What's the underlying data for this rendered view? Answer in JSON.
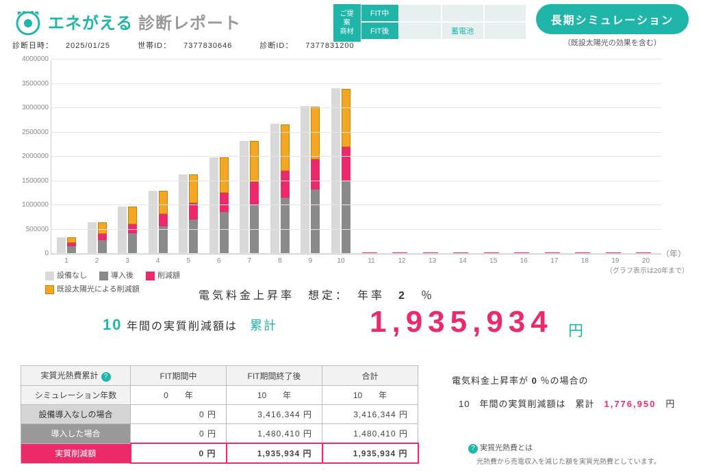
{
  "header": {
    "brand_teal": "エネがえる",
    "brand_gray": "診断レポート",
    "meta_date_label": "診断日時：",
    "meta_date": "2025/01/25",
    "meta_h_label": "世帯ID：",
    "meta_h": "7377830646",
    "meta_d_label": "診断ID：",
    "meta_d": "7377831200"
  },
  "matrix": {
    "label_l1": "ご提案",
    "label_l2": "商材",
    "row1": "FIT中",
    "row2": "FIT後",
    "cell_battery": "蓄電池"
  },
  "sim": {
    "btn": "長期シミュレーション",
    "sub": "（既設太陽光の効果を含む）"
  },
  "chart": {
    "ymax": 4000000,
    "ystep": 500000,
    "years": [
      1,
      2,
      3,
      4,
      5,
      6,
      7,
      8,
      9,
      10,
      11,
      12,
      13,
      14,
      15,
      16,
      17,
      18,
      19,
      20
    ],
    "bars": [
      {
        "gray": 340000,
        "dark": 150000,
        "pink": 70000,
        "orange": 120000
      },
      {
        "gray": 650000,
        "dark": 280000,
        "pink": 130000,
        "orange": 240000
      },
      {
        "gray": 970000,
        "dark": 420000,
        "pink": 190000,
        "orange": 360000
      },
      {
        "gray": 1300000,
        "dark": 560000,
        "pink": 260000,
        "orange": 480000
      },
      {
        "gray": 1640000,
        "dark": 710000,
        "pink": 330000,
        "orange": 600000
      },
      {
        "gray": 1980000,
        "dark": 860000,
        "pink": 400000,
        "orange": 720000
      },
      {
        "gray": 2330000,
        "dark": 1010000,
        "pink": 470000,
        "orange": 840000
      },
      {
        "gray": 2680000,
        "dark": 1160000,
        "pink": 540000,
        "orange": 960000
      },
      {
        "gray": 3040000,
        "dark": 1330000,
        "pink": 620000,
        "orange": 1080000
      },
      {
        "gray": 3410000,
        "dark": 1500000,
        "pink": 700000,
        "orange": 1200000
      }
    ],
    "colors": {
      "gray": "#d9d9d9",
      "dark": "#8a8a8a",
      "pink": "#ed2a69",
      "orange": "#f5a623",
      "pinkline": "#ed2a69"
    },
    "x_unit": "（年）",
    "note": "（グラフ表示は20年まで）"
  },
  "legend": {
    "i1": "設備なし",
    "i2": "導入後",
    "i3": "削減額",
    "i4": "既設太陽光による削減額"
  },
  "rate": {
    "label": "電気料金上昇率　想定：　年率",
    "val": "2",
    "unit": "％"
  },
  "result": {
    "yr": "10",
    "mid": "年間の実質削減額は",
    "cum": "累計",
    "amount": "1,935,934",
    "yen": "円"
  },
  "table": {
    "h0": "実質光熱費累計",
    "h1": "FIT期間中",
    "h2": "FIT期間終了後",
    "h3": "合計",
    "r1": "シミュレーション年数",
    "r1c1": "0　　年",
    "r1c2": "10　　年",
    "r1c3": "10　　年",
    "r2": "設備導入なしの場合",
    "r2c1": "0 円",
    "r2c2": "3,416,344 円",
    "r2c3": "3,416,344 円",
    "r3": "導入した場合",
    "r3c1": "0 円",
    "r3c2": "1,480,410 円",
    "r3c3": "1,480,410 円",
    "r4": "実質削減額",
    "r4c1": "0 円",
    "r4c2": "1,935,934 円",
    "r4c3": "1,935,934 円"
  },
  "side": {
    "line1a": "電気料金上昇率が",
    "pct": "0",
    "line1b": "％の場合の",
    "line2a": "10　年間の実質削減額は　累計",
    "amt": "1,776,950",
    "yen": "円"
  },
  "foot": {
    "t": "実質光熱費とは",
    "d": "光熱費から売電収入を減じた額を実質光熱費としています。"
  }
}
